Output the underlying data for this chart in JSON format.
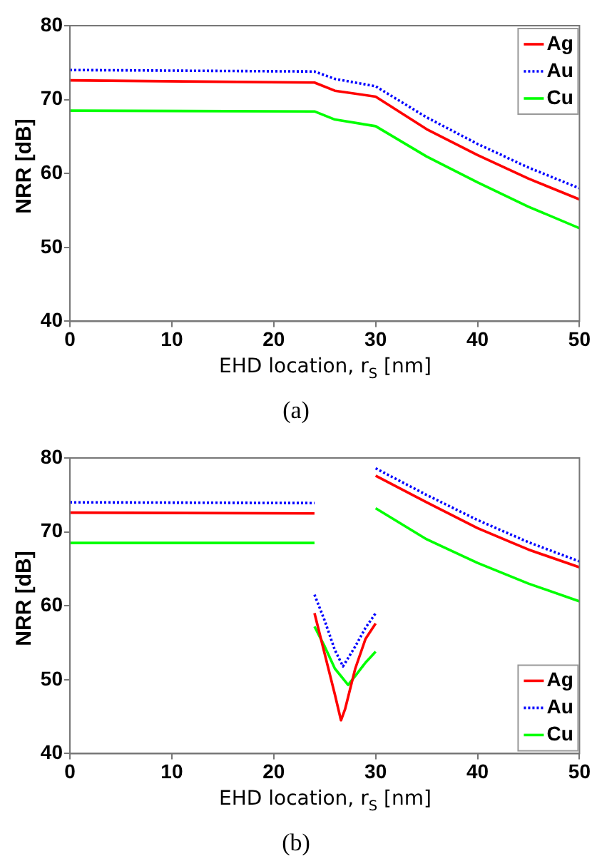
{
  "chart_data": [
    {
      "type": "line",
      "xlabel": "EHD location, r$_{S}$ [nm]",
      "ylabel": "NRR [dB]",
      "xlim": [
        0,
        50
      ],
      "xticks": [
        0,
        10,
        20,
        30,
        40,
        50
      ],
      "ylim": [
        40,
        80
      ],
      "yticks": [
        40,
        50,
        60,
        70,
        80
      ],
      "legend": "top right",
      "annotations": [
        "(a)"
      ],
      "series": [
        {
          "name": "Ag",
          "color": "#ff0000",
          "line_style": "solid",
          "x": [
            0,
            24,
            26,
            30,
            35,
            40,
            45,
            50
          ],
          "values": [
            72.6,
            72.3,
            71.2,
            70.4,
            66,
            62.5,
            59.3,
            56.5
          ]
        },
        {
          "name": "Au",
          "color": "#0000ff",
          "line_style": "dotted",
          "x": [
            0,
            24,
            26,
            30,
            35,
            40,
            45,
            50
          ],
          "values": [
            74,
            73.8,
            72.8,
            71.8,
            67.6,
            64,
            60.8,
            58
          ]
        },
        {
          "name": "Cu",
          "color": "#00ff00",
          "line_style": "solid",
          "x": [
            0,
            24,
            26,
            30,
            35,
            40,
            45,
            50
          ],
          "values": [
            68.5,
            68.4,
            67.3,
            66.4,
            62.3,
            58.8,
            55.5,
            52.6
          ]
        }
      ]
    },
    {
      "type": "line",
      "xlabel": "EHD location, r$_{S}$ [nm]",
      "ylabel": "NRR [dB]",
      "xlim": [
        0,
        50
      ],
      "xticks": [
        0,
        10,
        20,
        30,
        40,
        50
      ],
      "ylim": [
        40,
        80
      ],
      "yticks": [
        40,
        50,
        60,
        70,
        80
      ],
      "legend": "bottom right",
      "annotations": [
        "(b)"
      ],
      "series": [
        {
          "name": "Ag",
          "color": "#ff0000",
          "line_style": "solid",
          "x": [
            0,
            24,
            null,
            24,
            25,
            26,
            26.6,
            27,
            28,
            29,
            30,
            null,
            30,
            35,
            40,
            45,
            50
          ],
          "values": [
            72.6,
            72.5,
            null,
            59,
            53.5,
            48,
            44.5,
            46,
            51.5,
            55.5,
            57.6,
            null,
            77.6,
            74,
            70.5,
            67.6,
            65.2
          ]
        },
        {
          "name": "Au",
          "color": "#0000ff",
          "line_style": "dotted",
          "x": [
            0,
            24,
            null,
            24,
            25,
            26,
            26.8,
            28,
            29,
            30,
            null,
            30,
            35,
            40,
            45,
            50
          ],
          "values": [
            74,
            73.9,
            null,
            61.5,
            58,
            54,
            51.8,
            54.5,
            57,
            59,
            null,
            78.6,
            75,
            71.6,
            68.6,
            66
          ]
        },
        {
          "name": "Cu",
          "color": "#00ff00",
          "line_style": "solid",
          "x": [
            0,
            24,
            null,
            24,
            25,
            26,
            27.3,
            28,
            29,
            30,
            null,
            30,
            35,
            40,
            45,
            50
          ],
          "values": [
            68.5,
            68.5,
            null,
            57.2,
            54.5,
            51.5,
            49.3,
            50.5,
            52.3,
            53.8,
            null,
            73.2,
            69,
            65.8,
            63,
            60.6
          ]
        }
      ]
    }
  ]
}
